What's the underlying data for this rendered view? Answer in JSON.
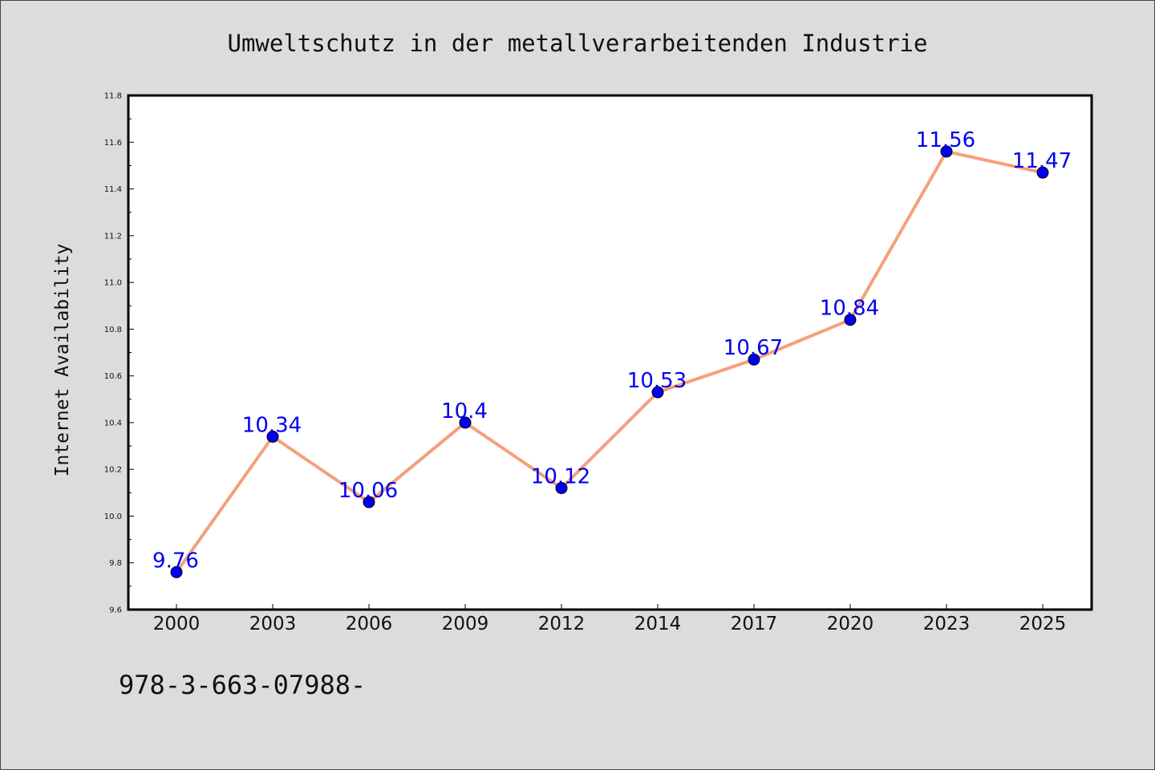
{
  "footer_text": "978-3-663-07988-",
  "chart_data": {
    "type": "line",
    "title": "Umweltschutz in der metallverarbeitenden Industrie",
    "xlabel": "",
    "ylabel": "Internet Availability",
    "categories": [
      "2000",
      "2003",
      "2006",
      "2009",
      "2012",
      "2014",
      "2017",
      "2020",
      "2023",
      "2025"
    ],
    "series": [
      {
        "values": [
          9.76,
          10.34,
          10.06,
          10.4,
          10.12,
          10.53,
          10.67,
          10.84,
          11.56,
          11.47
        ],
        "labels": [
          "9.76",
          "10.34",
          "10.06",
          "10.4",
          "10.12",
          "10.53",
          "10.67",
          "10.84",
          "11.56",
          "11.47"
        ],
        "line_color": "#f4a07c",
        "marker_color": "#0000ee",
        "label_color": "#0000ee"
      }
    ],
    "ylim": [
      9.6,
      11.8
    ],
    "yticks": [
      "9.6",
      "9.8",
      "10.0",
      "10.2",
      "10.4",
      "10.6",
      "10.8",
      "11.0",
      "11.2",
      "11.4",
      "11.6",
      "11.8"
    ],
    "grid": false,
    "legend": false,
    "plot_background": "#ffffff",
    "page_background": "#dcdcdc"
  }
}
